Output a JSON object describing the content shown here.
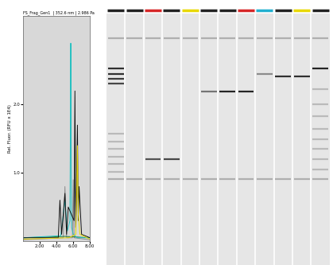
{
  "chart_data": [
    {
      "type": "line",
      "title": "FS_Frag_Gen1  | 352.6 nm | 2.986 Pa",
      "y_label": "Rel. Fluor. (RFU x 1E4)",
      "xlim": [
        0,
        8
      ],
      "xticks": [
        {
          "value": 2,
          "label": "2.00"
        },
        {
          "value": 4,
          "label": "4.00"
        },
        {
          "value": 6,
          "label": "6.00"
        },
        {
          "value": 8,
          "label": "8.00"
        }
      ],
      "ylim": [
        0,
        3.3
      ],
      "yticks": [
        {
          "value": 1,
          "label": "1.0"
        },
        {
          "value": 2,
          "label": "2.0"
        }
      ],
      "grid": false,
      "series": [
        {
          "color": "#8c8c8c",
          "x": [
            0,
            4.8,
            5.0,
            5.2,
            5.9,
            6.0,
            6.1,
            8
          ],
          "values": [
            0.02,
            0.05,
            0.8,
            0.05,
            0.05,
            0.9,
            0.05,
            0.02
          ]
        },
        {
          "color": "#1a7a3a",
          "x": [
            0,
            3,
            5,
            6.5,
            8
          ],
          "values": [
            0.05,
            0.06,
            0.07,
            0.06,
            0.05
          ]
        },
        {
          "color": "#20c0c0",
          "x": [
            0,
            4.5,
            5.0,
            5.3,
            5.6,
            5.65,
            5.7,
            5.75,
            5.8,
            6.0,
            6.5,
            8
          ],
          "values": [
            0.05,
            0.08,
            0.6,
            0.15,
            0.3,
            1.5,
            2.9,
            1.2,
            0.2,
            0.1,
            0.05,
            0.05
          ]
        },
        {
          "color": "#111111",
          "x": [
            0,
            4.2,
            4.4,
            4.6,
            5.0,
            5.2,
            5.4,
            6.1,
            6.2,
            6.3,
            6.5,
            6.6,
            6.7,
            7.0,
            8
          ],
          "values": [
            0.05,
            0.05,
            0.6,
            0.1,
            0.7,
            0.1,
            0.5,
            0.3,
            2.2,
            0.2,
            1.7,
            0.3,
            0.8,
            0.1,
            0.05
          ]
        },
        {
          "color": "#e8d800",
          "x": [
            0,
            5.5,
            6.3,
            6.4,
            6.5,
            6.6,
            6.8,
            8
          ],
          "values": [
            0.03,
            0.05,
            0.1,
            0.6,
            1.4,
            0.4,
            0.1,
            0.03
          ]
        }
      ]
    },
    {
      "type": "gel",
      "ylim": [
        0,
        1
      ],
      "tick_labels": false,
      "lanes": [
        {
          "color": "#222222",
          "bands": [
            0.1,
            0.22,
            0.24,
            0.26,
            0.28,
            0.48,
            0.51,
            0.54,
            0.57,
            0.6,
            0.63,
            0.66
          ],
          "intensities": [
            0.35,
            0.9,
            0.9,
            0.85,
            0.8,
            0.3,
            0.3,
            0.3,
            0.3,
            0.3,
            0.3,
            0.35
          ]
        },
        {
          "color": "#222222",
          "bands": [
            0.1,
            0.66
          ],
          "intensities": [
            0.35,
            0.35
          ]
        },
        {
          "color": "#d62728",
          "bands": [
            0.1,
            0.58,
            0.66
          ],
          "intensities": [
            0.35,
            0.75,
            0.35
          ]
        },
        {
          "color": "#222222",
          "bands": [
            0.1,
            0.58,
            0.66
          ],
          "intensities": [
            0.35,
            0.8,
            0.35
          ]
        },
        {
          "color": "#e8d800",
          "bands": [
            0.1,
            0.66
          ],
          "intensities": [
            0.35,
            0.35
          ]
        },
        {
          "color": "#222222",
          "bands": [
            0.1,
            0.31,
            0.66
          ],
          "intensities": [
            0.35,
            0.6,
            0.35
          ]
        },
        {
          "color": "#222222",
          "bands": [
            0.1,
            0.31,
            0.66
          ],
          "intensities": [
            0.35,
            0.95,
            0.35
          ]
        },
        {
          "color": "#d62728",
          "bands": [
            0.1,
            0.31,
            0.66
          ],
          "intensities": [
            0.35,
            0.95,
            0.35
          ]
        },
        {
          "color": "#22b0d0",
          "bands": [
            0.1,
            0.24,
            0.66
          ],
          "intensities": [
            0.35,
            0.5,
            0.35
          ]
        },
        {
          "color": "#222222",
          "bands": [
            0.1,
            0.25,
            0.66
          ],
          "intensities": [
            0.35,
            0.9,
            0.35
          ]
        },
        {
          "color": "#e8d800",
          "bands": [
            0.1,
            0.25,
            0.66
          ],
          "intensities": [
            0.35,
            0.9,
            0.35
          ]
        },
        {
          "color": "#222222",
          "bands": [
            0.1,
            0.22,
            0.3,
            0.36,
            0.41,
            0.46,
            0.5,
            0.54,
            0.58,
            0.62,
            0.66
          ],
          "intensities": [
            0.35,
            0.95,
            0.3,
            0.3,
            0.3,
            0.3,
            0.3,
            0.3,
            0.3,
            0.3,
            0.35
          ]
        }
      ]
    }
  ]
}
